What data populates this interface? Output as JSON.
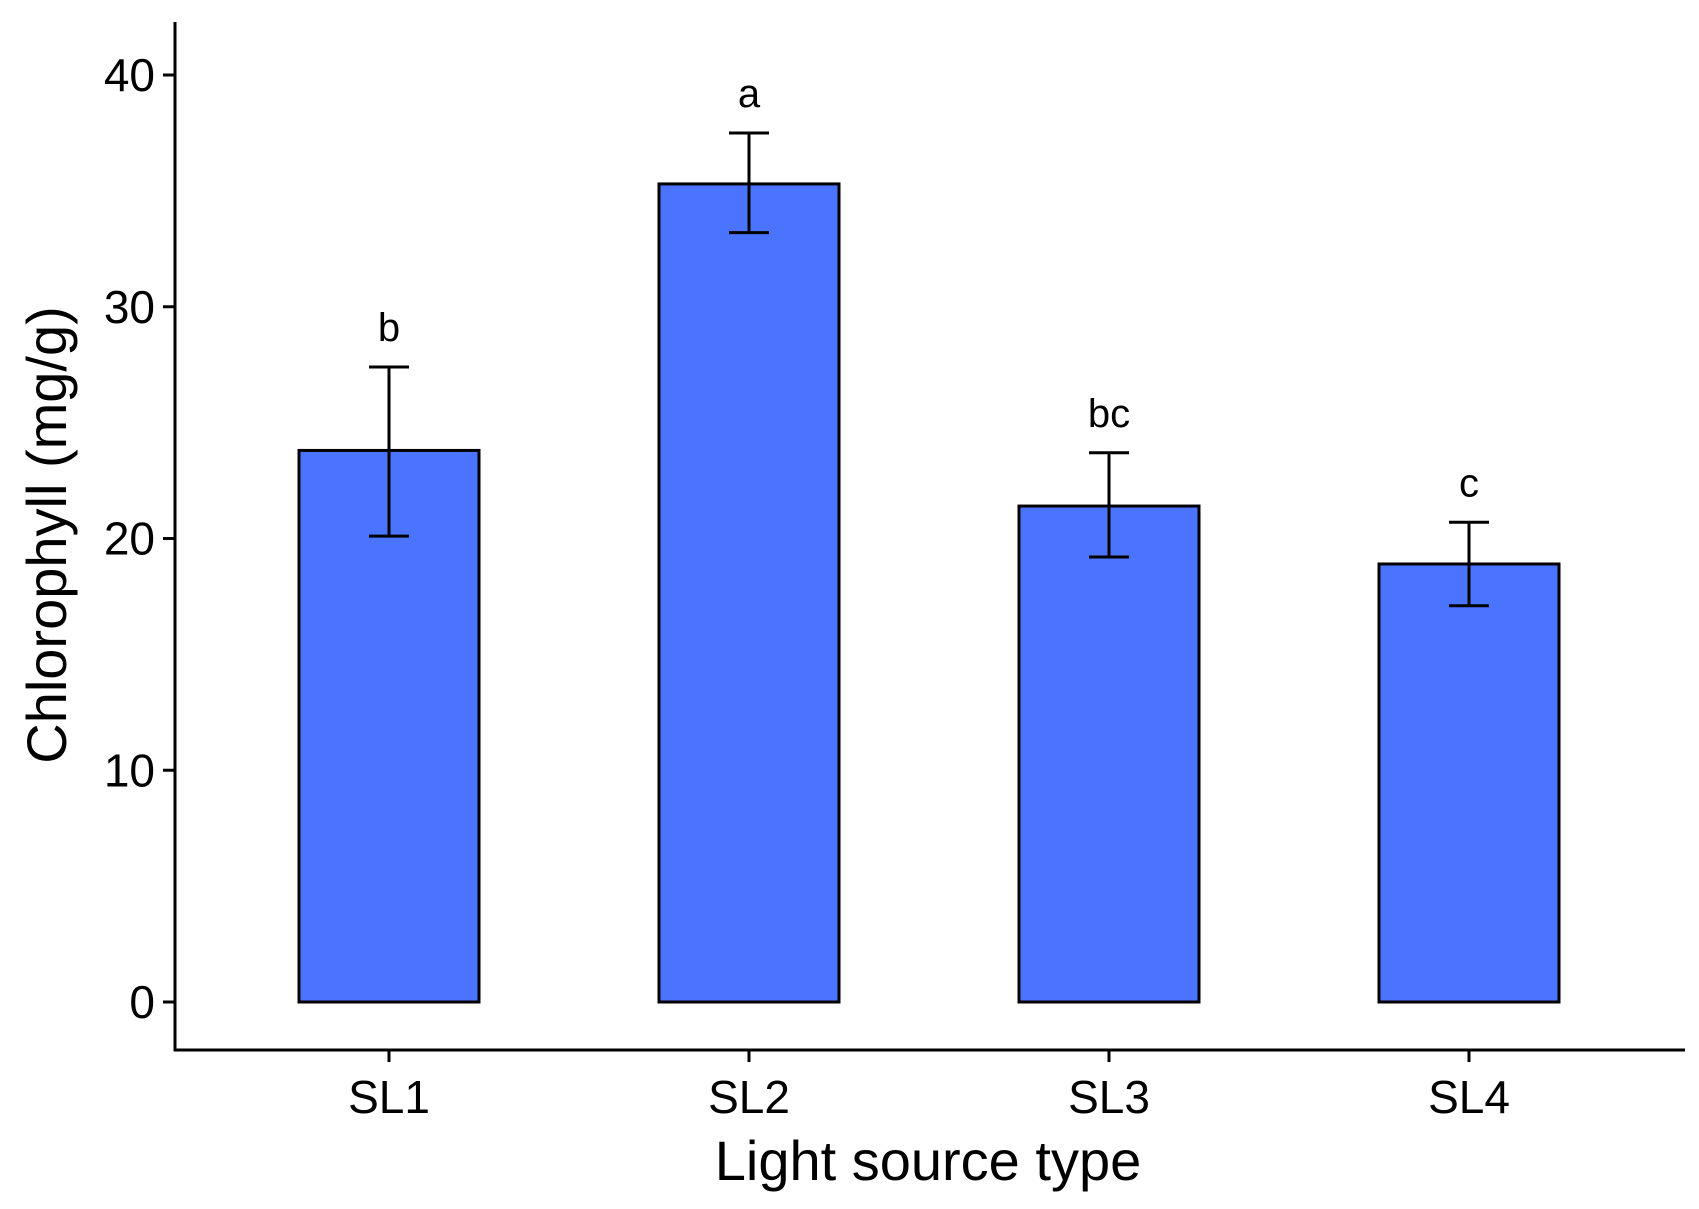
{
  "chart_data": {
    "type": "bar",
    "xlabel": "Light source type",
    "ylabel": "Chlorophyll (mg/g)",
    "categories": [
      "SL1",
      "SL2",
      "SL3",
      "SL4"
    ],
    "values": [
      23.8,
      35.3,
      21.4,
      18.9
    ],
    "error_low": [
      20.1,
      33.2,
      19.2,
      17.1
    ],
    "error_high": [
      27.4,
      37.5,
      23.7,
      20.7
    ],
    "significance_letters": [
      "b",
      "a",
      "bc",
      "c"
    ],
    "ylim": [
      -2,
      42
    ],
    "yticks": [
      0,
      10,
      20,
      30,
      40
    ],
    "ytick_labels": [
      "0",
      "10",
      "20",
      "30",
      "40"
    ],
    "grid": false,
    "legend": "none",
    "bar_color": "#4a74fe",
    "bar_outline_color": "#000000"
  }
}
